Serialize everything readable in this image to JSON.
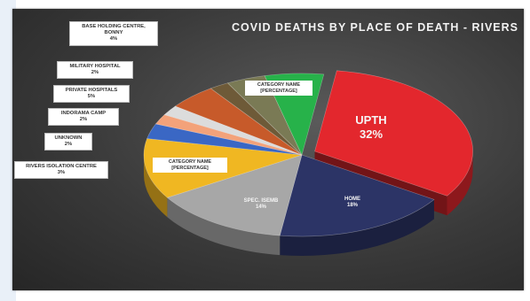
{
  "chart_data": {
    "type": "pie",
    "title": "COVID DEATHS BY PLACE OF DEATH - RIVERS",
    "slices": [
      {
        "label": "UPTH",
        "value": 32,
        "display": "32%",
        "color": "#e3272d"
      },
      {
        "label": "HOME",
        "value": 18,
        "display": "18%",
        "color": "#2c3466"
      },
      {
        "label": "SPEC. ISEMB",
        "value": 14,
        "display": "14%",
        "color": "#a7a7a7"
      },
      {
        "label": "CATEGORY NAME",
        "value": 12,
        "display": "[PERCENTAGE]",
        "color": "#f0b722"
      },
      {
        "label": "RIVERS ISOLATION CENTRE",
        "value": 3,
        "display": "3%",
        "color": "#3a67c4"
      },
      {
        "label": "UNKNOWN",
        "value": 2,
        "display": "2%",
        "color": "#f3a27a"
      },
      {
        "label": "INDORAMA CAMP",
        "value": 2,
        "display": "2%",
        "color": "#dcdcdc"
      },
      {
        "label": "PRIVATE HOSPITALS",
        "value": 5,
        "display": "5%",
        "color": "#c75a2a"
      },
      {
        "label": "MILITARY HOSPITAL",
        "value": 2,
        "display": "2%",
        "color": "#6e5a38"
      },
      {
        "label": "BASE HOLDING CENTRE, BONNY",
        "value": 4,
        "display": "4%",
        "color": "#7a7a55"
      },
      {
        "label": "CATEGORY NAME",
        "value": 6,
        "display": "[PERCENTAGE]",
        "color": "#27b24a"
      }
    ],
    "legend": "none"
  },
  "callouts": [
    {
      "title": "BASE HOLDING CENTRE, BONNY",
      "percent": "4%"
    },
    {
      "title": "MILITARY HOSPITAL",
      "percent": "2%"
    },
    {
      "title": "PRIVATE HOSPITALS",
      "percent": "5%"
    },
    {
      "title": "INDORAMA CAMP",
      "percent": "2%"
    },
    {
      "title": "UNKNOWN",
      "percent": "2%"
    },
    {
      "title": "RIVERS ISOLATION CENTRE",
      "percent": "3%"
    }
  ],
  "inner_labels": {
    "upth": {
      "name": "UPTH",
      "percent": "32%"
    },
    "home": {
      "name": "HOME",
      "percent": "18%"
    },
    "spec": {
      "name": "SPEC. ISEMB",
      "percent": "14%"
    },
    "yellow": {
      "name": "CATEGORY NAME",
      "percent": "[PERCENTAGE]"
    },
    "green": {
      "name": "CATEGORY NAME",
      "percent": "[PERCENTAGE]"
    }
  }
}
